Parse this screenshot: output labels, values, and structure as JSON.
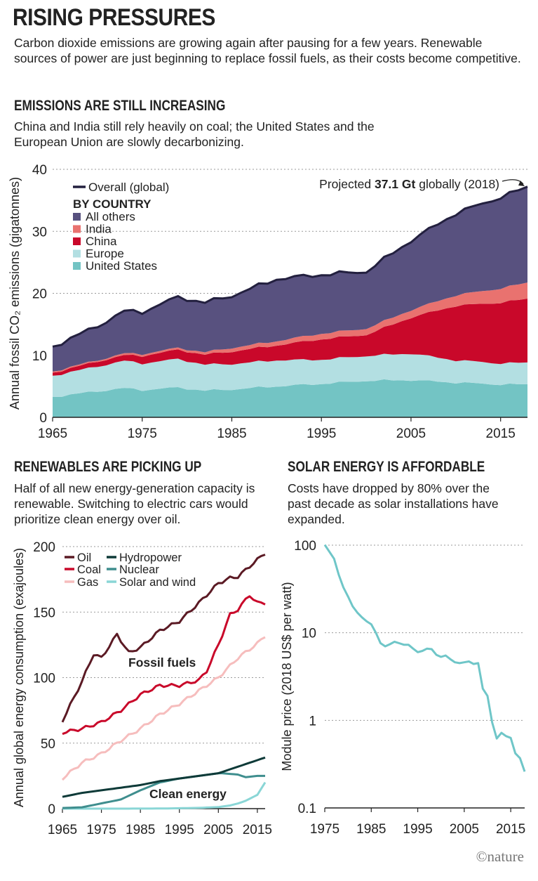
{
  "header": {
    "title": "RISING PRESSURES",
    "subtitle": "Carbon dioxide emissions are growing again after pausing for a few years. Renewable sources of power are just beginning to replace fossil fuels, as their costs become competitive."
  },
  "section1": {
    "heading": "EMISSIONS ARE STILL INCREASING",
    "text": "China and India still rely heavily on coal; the United States and the European Union are slowly decarbonizing."
  },
  "section2": {
    "heading": "RENEWABLES ARE PICKING UP",
    "text": "Half of all new energy-generation capacity is renewable. Switching to electric cars would prioritize clean energy over oil."
  },
  "section3": {
    "heading": "SOLAR ENERGY IS AFFORDABLE",
    "text": "Costs have dropped by 80% over the past decade as solar installations have expanded."
  },
  "credit": "©nature",
  "chart_data": [
    {
      "type": "area",
      "ylabel": "Annual fossil CO₂ emissions (gigatonnes)",
      "ylim": [
        0,
        40
      ],
      "xlim": [
        1965,
        2018
      ],
      "yticks": [
        0,
        10,
        20,
        30,
        40
      ],
      "xticks": [
        1965,
        1975,
        1985,
        1995,
        2005,
        2015
      ],
      "stacked": true,
      "legend_overall": "Overall (global)",
      "legend_heading": "BY COUNTRY",
      "annotation": {
        "prefix": "Projected ",
        "bold": "37.1 Gt",
        "suffix": " globally (2018)",
        "x": 2018,
        "y": 37.1
      },
      "colors": {
        "overall": "#23203f",
        "all_others": "#58517f",
        "india": "#e9726f",
        "china": "#c9082a",
        "europe": "#b3dfe2",
        "us": "#73c4c4"
      },
      "x": [
        1965,
        1970,
        1973,
        1975,
        1979,
        1982,
        1985,
        1990,
        1995,
        2000,
        2005,
        2010,
        2015,
        2018
      ],
      "series": [
        {
          "key": "us",
          "name": "United States",
          "values": [
            3.3,
            4.2,
            4.7,
            4.4,
            4.8,
            4.3,
            4.5,
            5.0,
            5.4,
            5.9,
            6.0,
            5.6,
            5.3,
            5.3
          ]
        },
        {
          "key": "europe",
          "name": "Europe",
          "values": [
            3.4,
            4.0,
            4.4,
            4.3,
            4.6,
            4.2,
            4.1,
            4.2,
            3.9,
            4.0,
            4.3,
            3.6,
            3.4,
            3.5
          ]
        },
        {
          "key": "china",
          "name": "China",
          "values": [
            0.5,
            0.8,
            0.9,
            1.2,
            1.5,
            1.6,
            2.0,
            2.4,
            3.3,
            3.4,
            5.8,
            8.8,
            9.8,
            10.3
          ]
        },
        {
          "key": "india",
          "name": "India",
          "values": [
            0.2,
            0.2,
            0.3,
            0.3,
            0.3,
            0.4,
            0.6,
            0.7,
            0.9,
            1.0,
            1.2,
            1.7,
            2.3,
            2.6
          ]
        },
        {
          "key": "all_others",
          "name": "All others",
          "values": [
            4.0,
            5.5,
            6.8,
            6.8,
            8.2,
            8.0,
            8.4,
            10.0,
            9.5,
            9.2,
            11.2,
            13.2,
            14.7,
            15.4
          ]
        }
      ]
    },
    {
      "type": "line",
      "ylabel": "Annual global energy consumption (exajoules)",
      "ylim": [
        0,
        200
      ],
      "xlim": [
        1965,
        2017
      ],
      "yticks": [
        0,
        50,
        100,
        150,
        200
      ],
      "xticks": [
        1965,
        1975,
        1985,
        1995,
        2005,
        2015
      ],
      "labels": {
        "fossil": "Fossil fuels",
        "clean": "Clean energy"
      },
      "series": [
        {
          "name": "Oil",
          "color": "#5b1a24",
          "x": [
            1965,
            1970,
            1973,
            1975,
            1979,
            1982,
            1985,
            1990,
            1995,
            2000,
            2005,
            2008,
            2010,
            2015,
            2017
          ],
          "values": [
            67,
            97,
            118,
            115,
            133,
            119,
            123,
            136,
            143,
            157,
            172,
            176,
            177,
            190,
            195
          ]
        },
        {
          "name": "Coal",
          "color": "#c9082a",
          "x": [
            1965,
            1970,
            1975,
            1980,
            1985,
            1990,
            1995,
            2000,
            2002,
            2005,
            2008,
            2010,
            2013,
            2015,
            2017
          ],
          "values": [
            58,
            61,
            66,
            75,
            87,
            94,
            94,
            98,
            105,
            125,
            148,
            152,
            163,
            157,
            157
          ]
        },
        {
          "name": "Gas",
          "color": "#f6bdbd",
          "x": [
            1965,
            1970,
            1975,
            1980,
            1985,
            1990,
            1995,
            2000,
            2005,
            2010,
            2015,
            2017
          ],
          "values": [
            23,
            35,
            42,
            52,
            61,
            72,
            80,
            90,
            100,
            115,
            126,
            132
          ]
        },
        {
          "name": "Hydropower",
          "color": "#0e3a38",
          "x": [
            1965,
            1970,
            1975,
            1980,
            1985,
            1990,
            1995,
            2000,
            2005,
            2010,
            2015,
            2017
          ],
          "values": [
            9,
            12,
            14,
            16,
            18,
            21,
            23,
            25,
            27,
            32,
            37,
            39
          ]
        },
        {
          "name": "Nuclear",
          "color": "#3f8e8e",
          "x": [
            1965,
            1970,
            1975,
            1980,
            1985,
            1990,
            1995,
            2000,
            2005,
            2006,
            2010,
            2012,
            2015,
            2017
          ],
          "values": [
            0.5,
            1,
            4,
            7,
            14,
            20,
            23,
            25,
            27,
            27,
            26,
            24,
            25,
            25
          ]
        },
        {
          "name": "Solar and wind",
          "color": "#8ad6d6",
          "x": [
            1965,
            1980,
            1990,
            1995,
            2000,
            2005,
            2008,
            2010,
            2012,
            2015,
            2017
          ],
          "values": [
            0,
            0,
            0.1,
            0.3,
            0.6,
            1.2,
            2.4,
            3.9,
            6.0,
            10.5,
            20
          ]
        }
      ]
    },
    {
      "type": "line",
      "ylabel": "Module price (2018 US$ per watt)",
      "yscale": "log",
      "ylim": [
        0.1,
        100
      ],
      "xlim": [
        1975,
        2018
      ],
      "yticks": [
        0.1,
        1,
        10,
        100
      ],
      "ytick_labels": [
        "0.1",
        "1",
        "10",
        "100"
      ],
      "xticks": [
        1975,
        1985,
        1995,
        2005,
        2015
      ],
      "series": [
        {
          "name": "",
          "color": "#6fc6c8",
          "x": [
            1975,
            1977,
            1978,
            1979,
            1980,
            1981,
            1982,
            1983,
            1984,
            1985,
            1986,
            1987,
            1988,
            1989,
            1990,
            1991,
            1992,
            1993,
            1994,
            1995,
            1996,
            1997,
            1998,
            1999,
            2000,
            2001,
            2002,
            2003,
            2004,
            2005,
            2006,
            2007,
            2008,
            2009,
            2010,
            2011,
            2012,
            2013,
            2014,
            2015,
            2016,
            2017,
            2018
          ],
          "values": [
            101,
            70,
            46,
            33,
            26,
            20,
            17,
            15,
            13.5,
            12.5,
            10,
            7.6,
            7.0,
            7.4,
            7.9,
            7.6,
            7.3,
            7.3,
            6.6,
            6.0,
            6.2,
            6.6,
            6.5,
            5.6,
            5.3,
            5.5,
            5.0,
            4.6,
            4.5,
            4.6,
            4.7,
            4.4,
            4.5,
            2.3,
            1.9,
            0.95,
            0.62,
            0.72,
            0.66,
            0.63,
            0.42,
            0.37,
            0.26
          ]
        }
      ]
    }
  ]
}
